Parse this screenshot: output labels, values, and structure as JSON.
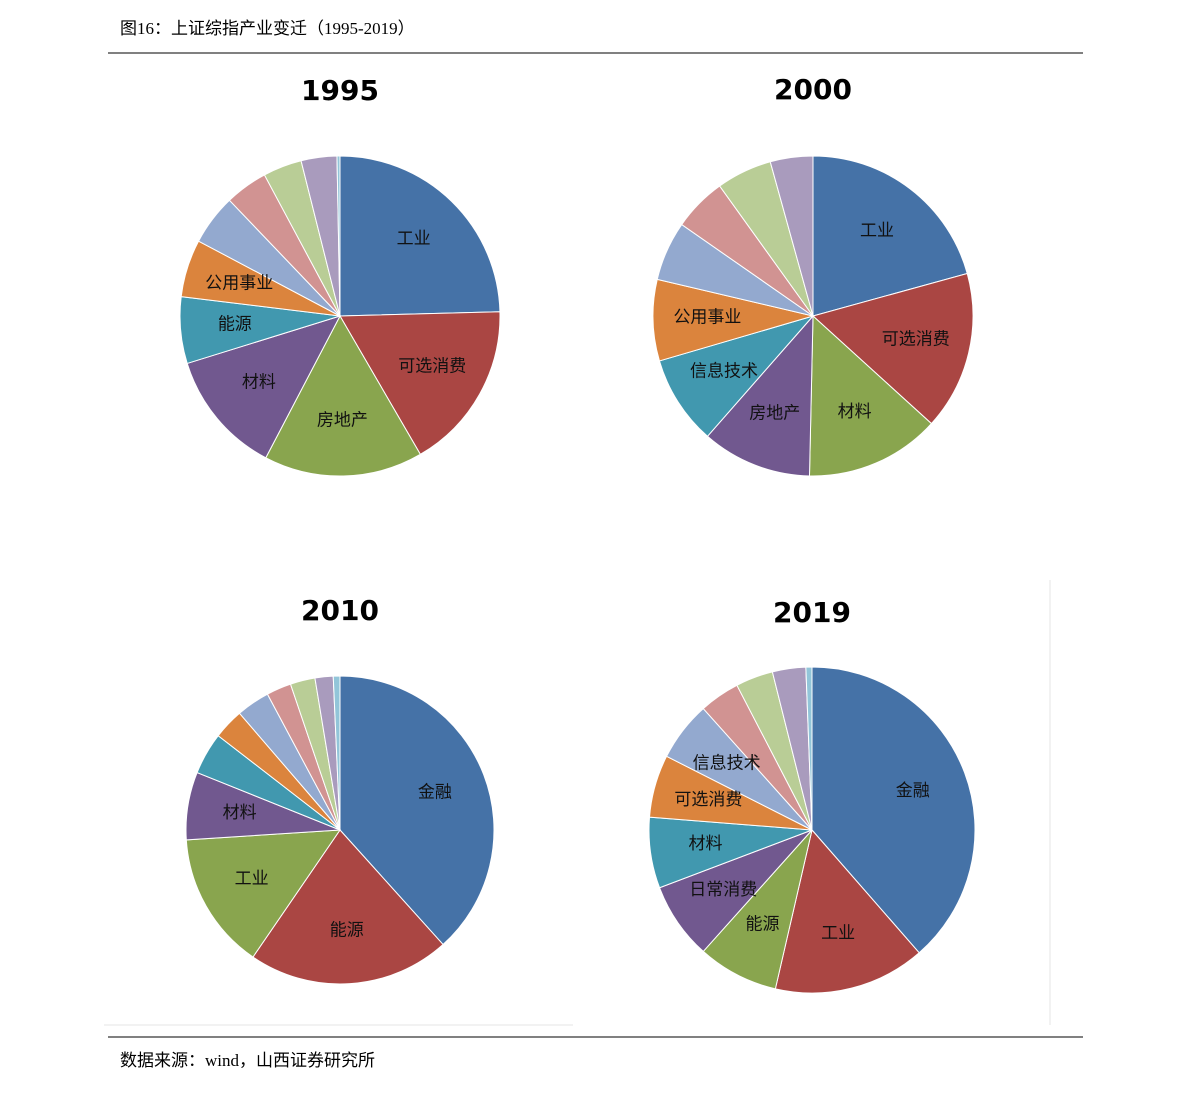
{
  "figure_title": "图16：上证综指产业变迁（1995-2019）",
  "source": "数据来源：wind，山西证券研究所",
  "chart_data": [
    {
      "type": "pie",
      "title": "1995",
      "categories": [
        "工业",
        "可选消费",
        "房地产",
        "材料",
        "能源",
        "公用事业",
        null,
        null,
        null,
        null,
        null
      ],
      "values": [
        24.5,
        17,
        16,
        12.5,
        6.7,
        5.8,
        5.1,
        4.3,
        3.9,
        3.6,
        0.3
      ],
      "colors": [
        "#4572a7",
        "#aa4643",
        "#89a54e",
        "#71588f",
        "#4198af",
        "#db843d",
        "#93a9cf",
        "#d19392",
        "#b9cd96",
        "#a99bbd",
        "#92c5d9"
      ]
    },
    {
      "type": "pie",
      "title": "2000",
      "categories": [
        "工业",
        "可选消费",
        "材料",
        "房地产",
        "信息技术",
        "公用事业",
        null,
        null,
        null,
        null
      ],
      "values": [
        20.7,
        16,
        13.6,
        11.1,
        9,
        8.2,
        6,
        5.4,
        5.6,
        4.3
      ],
      "colors": [
        "#4572a7",
        "#aa4643",
        "#89a54e",
        "#71588f",
        "#4198af",
        "#db843d",
        "#93a9cf",
        "#d19392",
        "#b9cd96",
        "#a99bbd"
      ]
    },
    {
      "type": "pie",
      "title": "2010",
      "categories": [
        "金融",
        "能源",
        "工业",
        "材料",
        null,
        null,
        null,
        null,
        null,
        null,
        null
      ],
      "values": [
        38.3,
        21.2,
        14.4,
        7.1,
        4.4,
        3.2,
        3.5,
        2.6,
        2.6,
        1.9,
        0.7
      ],
      "colors": [
        "#4572a7",
        "#aa4643",
        "#89a54e",
        "#71588f",
        "#4198af",
        "#db843d",
        "#93a9cf",
        "#d19392",
        "#b9cd96",
        "#a99bbd",
        "#92c5d9"
      ]
    },
    {
      "type": "pie",
      "title": "2019",
      "categories": [
        "金融",
        "工业",
        "能源",
        "日常消费",
        "材料",
        "可选消费",
        "信息技术",
        null,
        null,
        null,
        null
      ],
      "values": [
        38.5,
        15,
        8,
        7.6,
        7,
        6.2,
        5.9,
        4,
        3.7,
        3.3,
        0.6
      ],
      "colors": [
        "#4572a7",
        "#aa4643",
        "#89a54e",
        "#71588f",
        "#4198af",
        "#db843d",
        "#93a9cf",
        "#d19392",
        "#b9cd96",
        "#a99bbd",
        "#92c5d9"
      ]
    }
  ]
}
